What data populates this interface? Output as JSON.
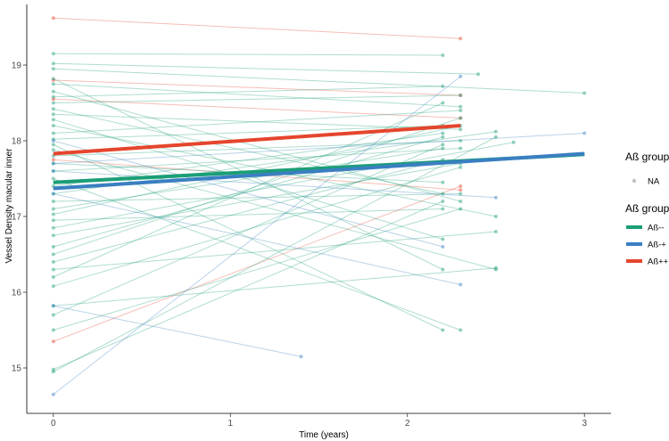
{
  "chart_data": {
    "type": "line",
    "title": "",
    "xlabel": "Time (years)",
    "ylabel": "Vessel Density macular inner",
    "xlim": [
      -0.15,
      3.15
    ],
    "ylim": [
      14.4,
      19.8
    ],
    "xticks": [
      0,
      1,
      2,
      3
    ],
    "yticks": [
      15,
      16,
      17,
      18,
      19
    ],
    "grid": false,
    "colors": {
      "ab_mm": "#1b9e77",
      "ab_mp": "#3a7fc1",
      "ab_pp": "#e5452d",
      "na_point": "#999999"
    },
    "legend": {
      "placement": "right",
      "point_title": "Aß group",
      "point_entries": [
        {
          "label": "NA",
          "color": "#999999"
        }
      ],
      "line_title": "Aß group",
      "line_entries": [
        {
          "label": "Aß--",
          "color": "#1b9e77"
        },
        {
          "label": "Aß-+",
          "color": "#3a7fc1"
        },
        {
          "label": "Aß++",
          "color": "#e5452d"
        }
      ]
    },
    "series": [
      {
        "name": "Aß--",
        "color": "#1b9e77",
        "x": [
          0,
          3
        ],
        "y": [
          17.45,
          17.82
        ]
      },
      {
        "name": "Aß-+",
        "color": "#3a7fc1",
        "x": [
          0,
          3
        ],
        "y": [
          17.37,
          17.83
        ]
      },
      {
        "name": "Aß++",
        "color": "#e5452d",
        "x": [
          0,
          2.3
        ],
        "y": [
          17.83,
          18.2
        ]
      }
    ],
    "individual_trajectories": [
      {
        "group": "Aß++",
        "x": [
          0,
          2.3
        ],
        "y": [
          19.62,
          19.35
        ]
      },
      {
        "group": "Aß++",
        "x": [
          0,
          2.3
        ],
        "y": [
          18.8,
          18.6
        ]
      },
      {
        "group": "Aß++",
        "x": [
          0,
          2.3
        ],
        "y": [
          18.55,
          18.3
        ]
      },
      {
        "group": "Aß++",
        "x": [
          0,
          2.3
        ],
        "y": [
          17.75,
          17.35
        ]
      },
      {
        "group": "Aß++",
        "x": [
          0,
          2.3
        ],
        "y": [
          15.35,
          17.4
        ]
      },
      {
        "group": "Aß--",
        "x": [
          0,
          2.2
        ],
        "y": [
          19.15,
          19.13
        ]
      },
      {
        "group": "Aß--",
        "x": [
          0,
          2.4
        ],
        "y": [
          19.02,
          18.88
        ]
      },
      {
        "group": "Aß--",
        "x": [
          0,
          3.0
        ],
        "y": [
          18.95,
          18.63
        ]
      },
      {
        "group": "Aß--",
        "x": [
          0,
          2.2
        ],
        "y": [
          18.82,
          16.3
        ]
      },
      {
        "group": "Aß--",
        "x": [
          0,
          2.3
        ],
        "y": [
          18.75,
          18.45
        ]
      },
      {
        "group": "Aß--",
        "x": [
          0,
          2.3
        ],
        "y": [
          18.65,
          17.2
        ]
      },
      {
        "group": "Aß--",
        "x": [
          0,
          2.2
        ],
        "y": [
          18.58,
          18.72
        ]
      },
      {
        "group": "Aß--",
        "x": [
          0,
          2.3
        ],
        "y": [
          18.5,
          18.6
        ]
      },
      {
        "group": "Aß--",
        "x": [
          0,
          2.2
        ],
        "y": [
          18.42,
          17.3
        ]
      },
      {
        "group": "Aß--",
        "x": [
          0,
          2.3
        ],
        "y": [
          18.35,
          18.15
        ]
      },
      {
        "group": "Aß--",
        "x": [
          0,
          2.2
        ],
        "y": [
          18.28,
          16.7
        ]
      },
      {
        "group": "Aß--",
        "x": [
          0,
          2.5
        ],
        "y": [
          18.2,
          17.0
        ]
      },
      {
        "group": "Aß--",
        "x": [
          0,
          2.3
        ],
        "y": [
          18.1,
          18.4
        ]
      },
      {
        "group": "Aß--",
        "x": [
          0,
          2.2
        ],
        "y": [
          18.02,
          18.2
        ]
      },
      {
        "group": "Aß--",
        "x": [
          0,
          2.2
        ],
        "y": [
          17.95,
          15.5
        ]
      },
      {
        "group": "Aß--",
        "x": [
          0,
          2.5
        ],
        "y": [
          17.88,
          16.3
        ]
      },
      {
        "group": "Aß--",
        "x": [
          0,
          2.3
        ],
        "y": [
          17.8,
          18.0
        ]
      },
      {
        "group": "Aß--",
        "x": [
          0,
          2.2
        ],
        "y": [
          17.7,
          17.45
        ]
      },
      {
        "group": "Aß--",
        "x": [
          0,
          2.3
        ],
        "y": [
          17.6,
          17.9
        ]
      },
      {
        "group": "Aß--",
        "x": [
          0,
          2.3
        ],
        "y": [
          17.5,
          15.5
        ]
      },
      {
        "group": "Aß--",
        "x": [
          0,
          2.2
        ],
        "y": [
          17.4,
          18.1
        ]
      },
      {
        "group": "Aß--",
        "x": [
          0,
          2.5
        ],
        "y": [
          17.3,
          18.12
        ]
      },
      {
        "group": "Aß--",
        "x": [
          0,
          2.3
        ],
        "y": [
          17.2,
          17.3
        ]
      },
      {
        "group": "Aß--",
        "x": [
          0,
          2.2
        ],
        "y": [
          17.1,
          17.9
        ]
      },
      {
        "group": "Aß--",
        "x": [
          0,
          2.3
        ],
        "y": [
          17.03,
          18.2
        ]
      },
      {
        "group": "Aß--",
        "x": [
          0,
          2.2
        ],
        "y": [
          16.95,
          17.1
        ]
      },
      {
        "group": "Aß--",
        "x": [
          0,
          2.6
        ],
        "y": [
          16.85,
          17.98
        ]
      },
      {
        "group": "Aß--",
        "x": [
          0,
          2.3
        ],
        "y": [
          16.75,
          17.7
        ]
      },
      {
        "group": "Aß--",
        "x": [
          0,
          2.2
        ],
        "y": [
          16.6,
          18.05
        ]
      },
      {
        "group": "Aß--",
        "x": [
          0,
          2.3
        ],
        "y": [
          16.5,
          18.3
        ]
      },
      {
        "group": "Aß--",
        "x": [
          0,
          2.2
        ],
        "y": [
          16.4,
          17.75
        ]
      },
      {
        "group": "Aß--",
        "x": [
          0,
          2.5
        ],
        "y": [
          16.3,
          16.8
        ]
      },
      {
        "group": "Aß--",
        "x": [
          0,
          2.2
        ],
        "y": [
          16.2,
          18.5
        ]
      },
      {
        "group": "Aß--",
        "x": [
          0,
          2.3
        ],
        "y": [
          16.08,
          17.65
        ]
      },
      {
        "group": "Aß--",
        "x": [
          0,
          2.5
        ],
        "y": [
          15.82,
          16.32
        ]
      },
      {
        "group": "Aß--",
        "x": [
          0,
          2.2
        ],
        "y": [
          15.7,
          17.95
        ]
      },
      {
        "group": "Aß--",
        "x": [
          0,
          2.3
        ],
        "y": [
          15.5,
          17.1
        ]
      },
      {
        "group": "Aß--",
        "x": [
          0,
          2.2
        ],
        "y": [
          14.98,
          17.2
        ]
      },
      {
        "group": "Aß--",
        "x": [
          0,
          2.5
        ],
        "y": [
          14.95,
          18.05
        ]
      },
      {
        "group": "Aß-+",
        "x": [
          0,
          1.4
        ],
        "y": [
          15.82,
          15.15
        ]
      },
      {
        "group": "Aß-+",
        "x": [
          0,
          2.3
        ],
        "y": [
          14.65,
          18.85
        ]
      },
      {
        "group": "Aß-+",
        "x": [
          0,
          2.3
        ],
        "y": [
          17.3,
          16.1
        ]
      },
      {
        "group": "Aß-+",
        "x": [
          0,
          2.5
        ],
        "y": [
          17.6,
          17.25
        ]
      },
      {
        "group": "Aß-+",
        "x": [
          0,
          2.2
        ],
        "y": [
          18.0,
          16.6
        ]
      },
      {
        "group": "Aß-+",
        "x": [
          0,
          3.0
        ],
        "y": [
          17.7,
          18.1
        ]
      }
    ]
  }
}
